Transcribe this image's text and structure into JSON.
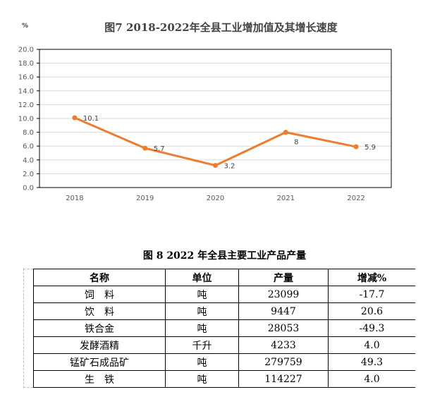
{
  "chart_data": {
    "type": "line",
    "title": "图7   2018-2022年全县工业增加值及其增长速度",
    "ylabel": "%",
    "categories": [
      "2018",
      "2019",
      "2020",
      "2021",
      "2022"
    ],
    "values": [
      10.1,
      5.7,
      3.2,
      8,
      5.9
    ],
    "data_labels": [
      "10.1",
      "5.7",
      "3.2",
      "8",
      "5.9"
    ],
    "ylim": [
      0,
      20
    ],
    "yticks": [
      "0.0",
      "2.0",
      "4.0",
      "6.0",
      "8.0",
      "10.0",
      "12.0",
      "14.0",
      "16.0",
      "18.0",
      "20.0"
    ],
    "grid": true,
    "color": "#ED7D31"
  },
  "table": {
    "title": "图 8   2022 年全县主要工业产品产量",
    "headers": [
      "名称",
      "单位",
      "产量",
      "增减%"
    ],
    "rows": [
      [
        "饲　料",
        "吨",
        "23099",
        "-17.7"
      ],
      [
        "饮　料",
        "吨",
        "9447",
        "20.6"
      ],
      [
        "铁合金",
        "吨",
        "28053",
        "-49.3"
      ],
      [
        "发酵酒精",
        "千升",
        "4233",
        "4.0"
      ],
      [
        "锰矿石成品矿",
        "吨",
        "279759",
        "49.3"
      ],
      [
        "生　铁",
        "吨",
        "114227",
        "4.0"
      ]
    ]
  }
}
